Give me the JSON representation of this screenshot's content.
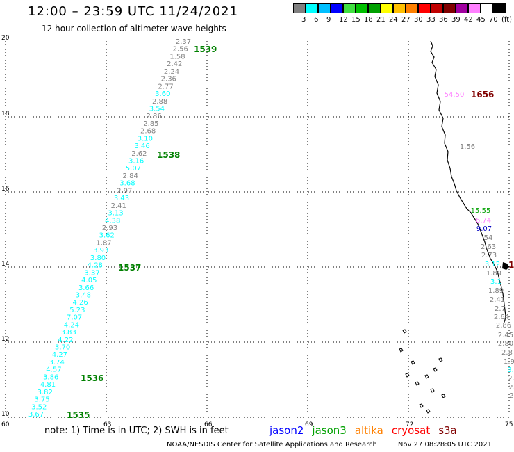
{
  "header": {
    "title": "12:00 – 23:59 UTC 11/24/2021",
    "subtitle": "12 hour collection of altimeter wave heights"
  },
  "legend": {
    "colors": [
      "#808080",
      "#00ffff",
      "#00bfff",
      "#0000ff",
      "#40e040",
      "#00c000",
      "#00a000",
      "#ffff00",
      "#ffc000",
      "#ff8000",
      "#ff0000",
      "#c00000",
      "#800000",
      "#a000a0",
      "#ff80ff",
      "#ffffff",
      "#000000"
    ],
    "labels": [
      "3",
      "6",
      "9",
      "12",
      "15",
      "18",
      "21",
      "24",
      "27",
      "30",
      "33",
      "36",
      "39",
      "42",
      "45",
      "70",
      "(ft)"
    ]
  },
  "axes": {
    "x_ticks": [
      "60",
      "63",
      "66",
      "69",
      "72",
      "75"
    ],
    "y_ticks": [
      "10",
      "12",
      "14",
      "16",
      "18",
      "20"
    ]
  },
  "tracks": [
    {
      "values": [
        {
          "t": "2.37",
          "c": "#808080"
        },
        {
          "t": "2.56",
          "c": "#808080"
        },
        {
          "t": "1.58",
          "c": "#808080"
        },
        {
          "t": "2.42",
          "c": "#808080"
        },
        {
          "t": "2.24",
          "c": "#808080"
        },
        {
          "t": "2.36",
          "c": "#808080"
        },
        {
          "t": "2.77",
          "c": "#808080"
        },
        {
          "t": "3.60",
          "c": "#00ffff"
        },
        {
          "t": "2.88",
          "c": "#808080"
        },
        {
          "t": "3.54",
          "c": "#00ffff"
        },
        {
          "t": "2.86",
          "c": "#808080"
        },
        {
          "t": "2.85",
          "c": "#808080"
        },
        {
          "t": "2.68",
          "c": "#808080"
        },
        {
          "t": "3.10",
          "c": "#00ffff"
        },
        {
          "t": "3.46",
          "c": "#00ffff"
        },
        {
          "t": "2.62",
          "c": "#808080"
        },
        {
          "t": "3.16",
          "c": "#00ffff"
        },
        {
          "t": "5.07",
          "c": "#00ffff"
        },
        {
          "t": "2.84",
          "c": "#808080"
        },
        {
          "t": "3.68",
          "c": "#00ffff"
        },
        {
          "t": "2.97",
          "c": "#808080"
        },
        {
          "t": "3.43",
          "c": "#00ffff"
        },
        {
          "t": "2.41",
          "c": "#808080"
        },
        {
          "t": "3.13",
          "c": "#00ffff"
        },
        {
          "t": "4.38",
          "c": "#00ffff"
        },
        {
          "t": "2.93",
          "c": "#808080"
        },
        {
          "t": "3.62",
          "c": "#00ffff"
        },
        {
          "t": "1.87",
          "c": "#808080"
        },
        {
          "t": "3.93",
          "c": "#00ffff"
        },
        {
          "t": "3.80",
          "c": "#00ffff"
        },
        {
          "t": "4.28",
          "c": "#00ffff"
        },
        {
          "t": "3.37",
          "c": "#00ffff"
        },
        {
          "t": "4.05",
          "c": "#00ffff"
        },
        {
          "t": "3.66",
          "c": "#00ffff"
        },
        {
          "t": "3.48",
          "c": "#00ffff"
        },
        {
          "t": "4.26",
          "c": "#00ffff"
        },
        {
          "t": "5.23",
          "c": "#00ffff"
        },
        {
          "t": "7.07",
          "c": "#00ffff"
        },
        {
          "t": "4.24",
          "c": "#00ffff"
        },
        {
          "t": "3.83",
          "c": "#00ffff"
        },
        {
          "t": "4.22",
          "c": "#00ffff"
        },
        {
          "t": "3.70",
          "c": "#00ffff"
        },
        {
          "t": "4.27",
          "c": "#00ffff"
        },
        {
          "t": "3.74",
          "c": "#00ffff"
        },
        {
          "t": "4.57",
          "c": "#00ffff"
        },
        {
          "t": "3.86",
          "c": "#00ffff"
        },
        {
          "t": "4.81",
          "c": "#00ffff"
        },
        {
          "t": "3.82",
          "c": "#00ffff"
        },
        {
          "t": "3.75",
          "c": "#00ffff"
        },
        {
          "t": "3.52",
          "c": "#00ffff"
        },
        {
          "t": "3.67",
          "c": "#00ffff"
        }
      ],
      "times": [
        "1539",
        "1538",
        "1537",
        "1536",
        "1535"
      ]
    },
    {
      "values": [
        {
          "t": "54.50",
          "c": "#ff80ff"
        },
        {
          "t": "1.56",
          "c": "#808080"
        },
        {
          "t": "15.55",
          "c": "#00a000"
        },
        {
          "t": "6.74",
          "c": "#ff80ff"
        },
        {
          "t": "9.07",
          "c": "#0000c0"
        },
        {
          "t": "54",
          "c": "#808080"
        },
        {
          "t": "2.63",
          "c": "#808080"
        },
        {
          "t": "2.73",
          "c": "#808080"
        },
        {
          "t": "3.12",
          "c": "#00ffff"
        },
        {
          "t": "1.89",
          "c": "#808080"
        },
        {
          "t": "3.1",
          "c": "#00ffff"
        },
        {
          "t": "1.89",
          "c": "#808080"
        },
        {
          "t": "2.41",
          "c": "#808080"
        },
        {
          "t": "2.7",
          "c": "#808080"
        },
        {
          "t": "2.64",
          "c": "#808080"
        },
        {
          "t": "2.86",
          "c": "#808080"
        },
        {
          "t": "2.45",
          "c": "#808080"
        },
        {
          "t": "2.80",
          "c": "#808080"
        },
        {
          "t": "2.8",
          "c": "#808080"
        },
        {
          "t": "1.9",
          "c": "#808080"
        },
        {
          "t": "3.",
          "c": "#00ffff"
        },
        {
          "t": "2.",
          "c": "#808080"
        },
        {
          "t": "2.",
          "c": "#808080"
        },
        {
          "t": "2.",
          "c": "#808080"
        }
      ],
      "times": [
        "1656",
        "1"
      ]
    }
  ],
  "footer": {
    "note": "note:  1) Time is in UTC;  2) SWH is in feet",
    "satellites": [
      {
        "name": "jason2",
        "color": "#0000ff"
      },
      {
        "name": "jason3",
        "color": "#00a000"
      },
      {
        "name": "altika",
        "color": "#ff8000"
      },
      {
        "name": "cryosat",
        "color": "#ff0000"
      },
      {
        "name": "s3a",
        "color": "#800000"
      }
    ],
    "credit_org": "NOAA/NESDIS Center for Satellite Applications and Research",
    "credit_time": "Nov 27 08:28:05 UTC 2021"
  }
}
